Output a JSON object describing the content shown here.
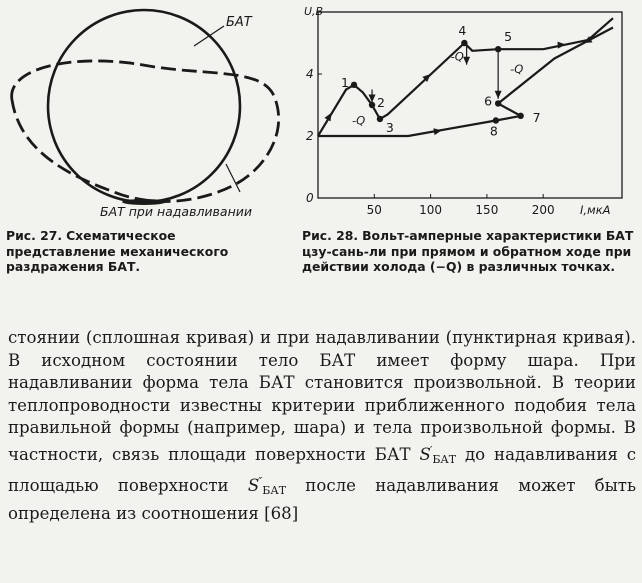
{
  "figure27": {
    "label_top": "БАТ",
    "label_bottom": "БАТ при надавливании",
    "caption_label": "Рис. 27.",
    "caption_text": "Схематическое представление механического раздражения БАТ."
  },
  "figure28": {
    "caption_label": "Рис. 28.",
    "caption_text": "Вольт-амперные характеристики БАТ цзу-сань-ли при прямом и обратном ходе при действии холода (−Q) в различных точках.",
    "point_labels": [
      "1",
      "2",
      "3",
      "4",
      "5",
      "6",
      "7",
      "8"
    ],
    "cold_labels": [
      "-Q",
      "-Q",
      "-Q"
    ]
  },
  "chart_data": {
    "type": "line",
    "xlabel": "I,мкА",
    "ylabel": "U,B",
    "xlim": [
      0,
      270
    ],
    "ylim": [
      0,
      6
    ],
    "x_ticks": [
      "50",
      "100",
      "150",
      "200"
    ],
    "y_ticks": [
      "0",
      "2",
      "4"
    ],
    "series": [
      {
        "points": [
          [
            0,
            2
          ],
          [
            25,
            3.5
          ],
          [
            32,
            3.65
          ],
          [
            40,
            3.4
          ],
          [
            48,
            3.0
          ],
          [
            55,
            2.55
          ],
          [
            62,
            2.7
          ],
          [
            130,
            5.0
          ],
          [
            137,
            4.75
          ],
          [
            160,
            4.8
          ],
          [
            200,
            4.8
          ],
          [
            240,
            5.1
          ],
          [
            262,
            5.8
          ]
        ]
      },
      {
        "points": [
          [
            262,
            5.5
          ],
          [
            210,
            4.5
          ],
          [
            160,
            3.05
          ],
          [
            180,
            2.65
          ],
          [
            158,
            2.5
          ],
          [
            80,
            2.0
          ],
          [
            0,
            2.0
          ]
        ]
      }
    ],
    "marked_points": [
      {
        "label": "1",
        "x": 32,
        "y": 3.65
      },
      {
        "label": "2",
        "x": 48,
        "y": 3.0
      },
      {
        "label": "3",
        "x": 55,
        "y": 2.55
      },
      {
        "label": "4",
        "x": 130,
        "y": 5.0
      },
      {
        "label": "5",
        "x": 160,
        "y": 4.8
      },
      {
        "label": "6",
        "x": 160,
        "y": 3.05
      },
      {
        "label": "7",
        "x": 180,
        "y": 2.65
      },
      {
        "label": "8",
        "x": 158,
        "y": 2.5
      }
    ]
  },
  "body": {
    "lines": [
      "стоянии (сплошная кривая) и при надавливании (пунктирная кривая). В исходном состоянии тело БАТ имеет форму шара. При надавливании форма тела БАТ становится произвольной. В теории теплопроводности известны критерии приближенного подобия тела правильной формы (например, шара) и тела произвольной формы. В частности, связь площади поверхности БАТ"
    ],
    "var1_letter": "S",
    "var1_prime": "′",
    "var1_sub": "БАТ",
    "text_mid": "до надавливания с площадью поверхности",
    "var2_letter": "S",
    "var2_prime": "″",
    "var2_sub": "БАТ",
    "text_end": "после надавливания может быть определена из соотношения [68]"
  }
}
